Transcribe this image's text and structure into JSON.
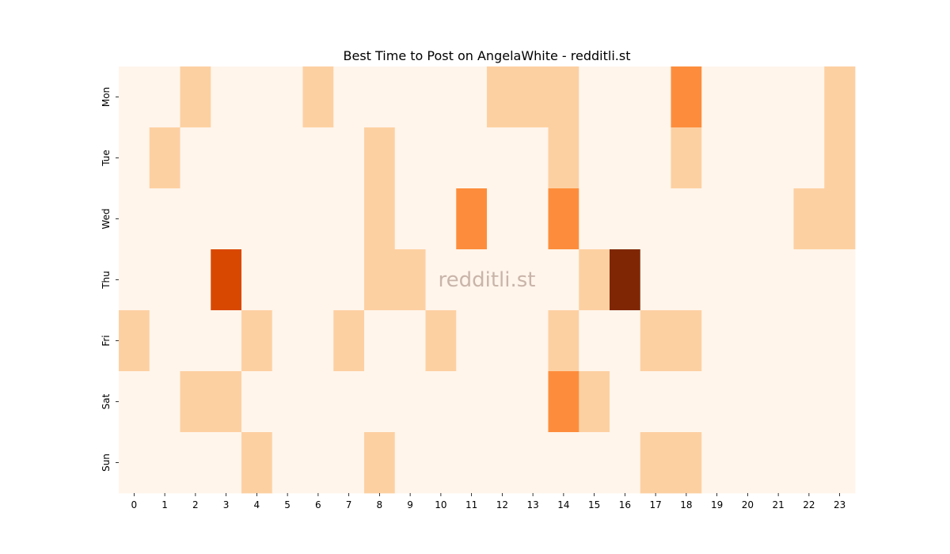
{
  "chart_data": {
    "type": "heatmap",
    "title": "Best Time to Post on AngelaWhite - redditli.st",
    "watermark": "redditli.st",
    "x_categories": [
      "0",
      "1",
      "2",
      "3",
      "4",
      "5",
      "6",
      "7",
      "8",
      "9",
      "10",
      "11",
      "12",
      "13",
      "14",
      "15",
      "16",
      "17",
      "18",
      "19",
      "20",
      "21",
      "22",
      "23"
    ],
    "y_categories": [
      "Mon",
      "Tue",
      "Wed",
      "Thu",
      "Fri",
      "Sat",
      "Sun"
    ],
    "values": [
      [
        0,
        0,
        1,
        0,
        0,
        0,
        1,
        0,
        0,
        0,
        0,
        0,
        1,
        1,
        1,
        0,
        0,
        0,
        3,
        0,
        0,
        0,
        0,
        1
      ],
      [
        0,
        1,
        0,
        0,
        0,
        0,
        0,
        0,
        1,
        0,
        0,
        0,
        0,
        0,
        1,
        0,
        0,
        0,
        1,
        0,
        0,
        0,
        0,
        1
      ],
      [
        0,
        0,
        0,
        0,
        0,
        0,
        0,
        0,
        1,
        0,
        0,
        3,
        0,
        0,
        3,
        0,
        0,
        0,
        0,
        0,
        0,
        0,
        1,
        1
      ],
      [
        0,
        0,
        0,
        5,
        0,
        0,
        0,
        0,
        1,
        1,
        0,
        0,
        0,
        0,
        0,
        1,
        8,
        0,
        0,
        0,
        0,
        0,
        0,
        0
      ],
      [
        1,
        0,
        0,
        0,
        1,
        0,
        0,
        1,
        0,
        0,
        1,
        0,
        0,
        0,
        1,
        0,
        0,
        1,
        1,
        0,
        0,
        0,
        0,
        0
      ],
      [
        0,
        0,
        1,
        1,
        0,
        0,
        0,
        0,
        0,
        0,
        0,
        0,
        0,
        0,
        3,
        1,
        0,
        0,
        0,
        0,
        0,
        0,
        0,
        0
      ],
      [
        0,
        0,
        0,
        0,
        1,
        0,
        0,
        0,
        1,
        0,
        0,
        0,
        0,
        0,
        0,
        0,
        0,
        1,
        1,
        0,
        0,
        0,
        0,
        0
      ]
    ],
    "colormap": "Oranges",
    "colors": {
      "0": "#fff5eb",
      "1": "#fdd0a2",
      "3": "#fd8d3c",
      "5": "#d94801",
      "8": "#7f2704"
    },
    "colorbar": false,
    "grid": false
  }
}
